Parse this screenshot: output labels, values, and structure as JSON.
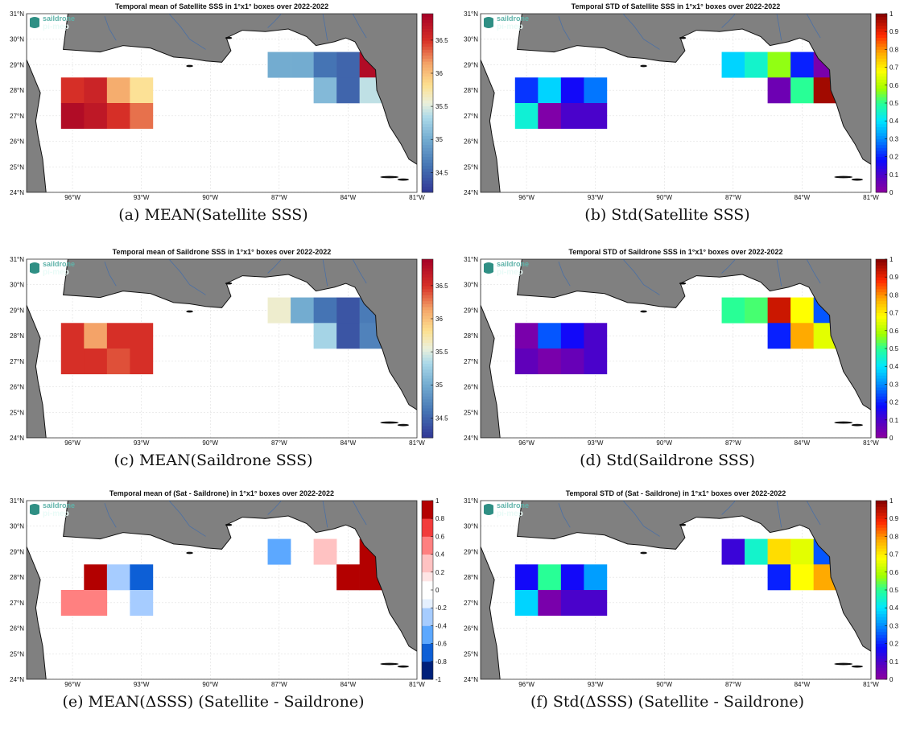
{
  "logo": {
    "line1": "saildrone",
    "line2": "pi-mep"
  },
  "colors": {
    "land": "#808080",
    "grid": "#d9d9d9",
    "axis": "#333333",
    "river": "#4a6fa5",
    "logo": "#2f8f84"
  },
  "chart_data": [
    {
      "type": "heatmap",
      "title": "Temporal mean of Satellite SSS in 1°x1° boxes over 2022-2022",
      "caption": "(a) MEAN(Satellite SSS)",
      "xlim": [
        -98,
        -81
      ],
      "ylim": [
        24,
        31
      ],
      "xticks": [
        -96,
        -93,
        -90,
        -87,
        -84,
        -81
      ],
      "xticklabels": [
        "96°W",
        "93°W",
        "90°W",
        "87°W",
        "84°W",
        "81°W"
      ],
      "yticks": [
        24,
        25,
        26,
        27,
        28,
        29,
        30,
        31
      ],
      "yticklabels": [
        "24°N",
        "25°N",
        "26°N",
        "27°N",
        "28°N",
        "29°N",
        "30°N",
        "31°N"
      ],
      "colormap": "div",
      "clim": [
        34.2,
        36.9
      ],
      "colorbar_ticks": [
        34.5,
        35,
        35.5,
        36,
        36.5
      ],
      "colorbar_ticklabels": [
        "34.5",
        "35",
        "35.5",
        "36",
        "36.5"
      ],
      "cells": [
        {
          "lon": -96,
          "lat": 28,
          "value": 36.5
        },
        {
          "lon": -95,
          "lat": 28,
          "value": 36.6
        },
        {
          "lon": -94,
          "lat": 28,
          "value": 36.1
        },
        {
          "lon": -93,
          "lat": 28,
          "value": 35.8
        },
        {
          "lon": -96,
          "lat": 27,
          "value": 36.8
        },
        {
          "lon": -95,
          "lat": 27,
          "value": 36.7
        },
        {
          "lon": -94,
          "lat": 27,
          "value": 36.5
        },
        {
          "lon": -93,
          "lat": 27,
          "value": 36.3
        },
        {
          "lon": -87,
          "lat": 29,
          "value": 35.0
        },
        {
          "lon": -86,
          "lat": 29,
          "value": 35.0
        },
        {
          "lon": -85,
          "lat": 29,
          "value": 34.6
        },
        {
          "lon": -84,
          "lat": 29,
          "value": 34.5
        },
        {
          "lon": -83,
          "lat": 29,
          "value": 36.8
        },
        {
          "lon": -85,
          "lat": 28,
          "value": 35.1
        },
        {
          "lon": -84,
          "lat": 28,
          "value": 34.5
        },
        {
          "lon": -83,
          "lat": 28,
          "value": 35.4
        }
      ]
    },
    {
      "type": "heatmap",
      "title": "Temporal STD of Satellite SSS in 1°x1° boxes over 2022-2022",
      "caption": "(b) Std(Satellite SSS)",
      "xlim": [
        -98,
        -81
      ],
      "ylim": [
        24,
        31
      ],
      "xticks": [
        -96,
        -93,
        -90,
        -87,
        -84,
        -81
      ],
      "xticklabels": [
        "96°W",
        "93°W",
        "90°W",
        "87°W",
        "84°W",
        "81°W"
      ],
      "yticks": [
        24,
        25,
        26,
        27,
        28,
        29,
        30,
        31
      ],
      "yticklabels": [
        "24°N",
        "25°N",
        "26°N",
        "27°N",
        "28°N",
        "29°N",
        "30°N",
        "31°N"
      ],
      "colormap": "jet",
      "clim": [
        0,
        1
      ],
      "colorbar_ticks": [
        0,
        0.1,
        0.2,
        0.3,
        0.4,
        0.5,
        0.6,
        0.7,
        0.8,
        0.9,
        1
      ],
      "colorbar_ticklabels": [
        "0",
        "0.1",
        "0.2",
        "0.3",
        "0.4",
        "0.5",
        "0.6",
        "0.7",
        "0.8",
        "0.9",
        "1"
      ],
      "cells": [
        {
          "lon": -96,
          "lat": 28,
          "value": 0.22
        },
        {
          "lon": -95,
          "lat": 28,
          "value": 0.38
        },
        {
          "lon": -94,
          "lat": 28,
          "value": 0.17
        },
        {
          "lon": -93,
          "lat": 28,
          "value": 0.28
        },
        {
          "lon": -96,
          "lat": 27,
          "value": 0.44
        },
        {
          "lon": -95,
          "lat": 27,
          "value": 0.02
        },
        {
          "lon": -94,
          "lat": 27,
          "value": 0.1
        },
        {
          "lon": -93,
          "lat": 27,
          "value": 0.1
        },
        {
          "lon": -87,
          "lat": 29,
          "value": 0.38
        },
        {
          "lon": -86,
          "lat": 29,
          "value": 0.45
        },
        {
          "lon": -85,
          "lat": 29,
          "value": 0.57
        },
        {
          "lon": -84,
          "lat": 29,
          "value": 0.2
        },
        {
          "lon": -83,
          "lat": 29,
          "value": 0.03
        },
        {
          "lon": -85,
          "lat": 28,
          "value": 0.05
        },
        {
          "lon": -84,
          "lat": 28,
          "value": 0.5
        },
        {
          "lon": -83,
          "lat": 28,
          "value": 0.97
        }
      ]
    },
    {
      "type": "heatmap",
      "title": "Temporal mean of Saildrone SSS in 1°x1° boxes over 2022-2022",
      "caption": "(c) MEAN(Saildrone SSS)",
      "xlim": [
        -98,
        -81
      ],
      "ylim": [
        24,
        31
      ],
      "xticks": [
        -96,
        -93,
        -90,
        -87,
        -84,
        -81
      ],
      "xticklabels": [
        "96°W",
        "93°W",
        "90°W",
        "87°W",
        "84°W",
        "81°W"
      ],
      "yticks": [
        24,
        25,
        26,
        27,
        28,
        29,
        30,
        31
      ],
      "yticklabels": [
        "24°N",
        "25°N",
        "26°N",
        "27°N",
        "28°N",
        "29°N",
        "30°N",
        "31°N"
      ],
      "colormap": "div",
      "clim": [
        34.2,
        36.9
      ],
      "colorbar_ticks": [
        34.5,
        35,
        35.5,
        36,
        36.5
      ],
      "colorbar_ticklabels": [
        "34.5",
        "35",
        "35.5",
        "36",
        "36.5"
      ],
      "cells": [
        {
          "lon": -96,
          "lat": 28,
          "value": 36.5
        },
        {
          "lon": -95,
          "lat": 28,
          "value": 36.15
        },
        {
          "lon": -94,
          "lat": 28,
          "value": 36.5
        },
        {
          "lon": -93,
          "lat": 28,
          "value": 36.5
        },
        {
          "lon": -96,
          "lat": 27,
          "value": 36.5
        },
        {
          "lon": -95,
          "lat": 27,
          "value": 36.5
        },
        {
          "lon": -94,
          "lat": 27,
          "value": 36.4
        },
        {
          "lon": -93,
          "lat": 27,
          "value": 36.5
        },
        {
          "lon": -87,
          "lat": 29,
          "value": 35.6
        },
        {
          "lon": -86,
          "lat": 29,
          "value": 35.0
        },
        {
          "lon": -85,
          "lat": 29,
          "value": 34.6
        },
        {
          "lon": -84,
          "lat": 29,
          "value": 34.4
        },
        {
          "lon": -83,
          "lat": 29,
          "value": 34.65
        },
        {
          "lon": -85,
          "lat": 28,
          "value": 35.3
        },
        {
          "lon": -84,
          "lat": 28,
          "value": 34.4
        },
        {
          "lon": -83,
          "lat": 28,
          "value": 34.7
        }
      ]
    },
    {
      "type": "heatmap",
      "title": "Temporal STD of Saildrone SSS in 1°x1° boxes over 2022-2022",
      "caption": "(d) Std(Saildrone SSS)",
      "xlim": [
        -98,
        -81
      ],
      "ylim": [
        24,
        31
      ],
      "xticks": [
        -96,
        -93,
        -90,
        -87,
        -84,
        -81
      ],
      "xticklabels": [
        "96°W",
        "93°W",
        "90°W",
        "87°W",
        "84°W",
        "81°W"
      ],
      "yticks": [
        24,
        25,
        26,
        27,
        28,
        29,
        30,
        31
      ],
      "yticklabels": [
        "24°N",
        "25°N",
        "26°N",
        "27°N",
        "28°N",
        "29°N",
        "30°N",
        "31°N"
      ],
      "colormap": "jet",
      "clim": [
        0,
        1
      ],
      "colorbar_ticks": [
        0,
        0.1,
        0.2,
        0.3,
        0.4,
        0.5,
        0.6,
        0.7,
        0.8,
        0.9,
        1
      ],
      "colorbar_ticklabels": [
        "0",
        "0.1",
        "0.2",
        "0.3",
        "0.4",
        "0.5",
        "0.6",
        "0.7",
        "0.8",
        "0.9",
        "1"
      ],
      "cells": [
        {
          "lon": -96,
          "lat": 28,
          "value": 0.03
        },
        {
          "lon": -95,
          "lat": 28,
          "value": 0.25
        },
        {
          "lon": -94,
          "lat": 28,
          "value": 0.17
        },
        {
          "lon": -93,
          "lat": 28,
          "value": 0.1
        },
        {
          "lon": -96,
          "lat": 27,
          "value": 0.07
        },
        {
          "lon": -95,
          "lat": 27,
          "value": 0.03
        },
        {
          "lon": -94,
          "lat": 27,
          "value": 0.06
        },
        {
          "lon": -93,
          "lat": 27,
          "value": 0.1
        },
        {
          "lon": -87,
          "lat": 29,
          "value": 0.5
        },
        {
          "lon": -86,
          "lat": 29,
          "value": 0.52
        },
        {
          "lon": -85,
          "lat": 29,
          "value": 0.93
        },
        {
          "lon": -84,
          "lat": 29,
          "value": 0.68
        },
        {
          "lon": -83,
          "lat": 29,
          "value": 0.25
        },
        {
          "lon": -85,
          "lat": 28,
          "value": 0.2
        },
        {
          "lon": -84,
          "lat": 28,
          "value": 0.78
        },
        {
          "lon": -83,
          "lat": 28,
          "value": 0.65
        }
      ]
    },
    {
      "type": "heatmap",
      "title": "Temporal mean of (Sat - Saildrone) in 1°x1° boxes over 2022-2022",
      "caption": "(e) MEAN(ΔSSS) (Satellite - Saildrone)",
      "xlim": [
        -98,
        -81
      ],
      "ylim": [
        24,
        31
      ],
      "xticks": [
        -96,
        -93,
        -90,
        -87,
        -84,
        -81
      ],
      "xticklabels": [
        "96°W",
        "93°W",
        "90°W",
        "87°W",
        "84°W",
        "81°W"
      ],
      "yticks": [
        24,
        25,
        26,
        27,
        28,
        29,
        30,
        31
      ],
      "yticklabels": [
        "24°N",
        "25°N",
        "26°N",
        "27°N",
        "28°N",
        "29°N",
        "30°N",
        "31°N"
      ],
      "colormap": "bwr",
      "clim": [
        -1,
        1
      ],
      "colorbar_ticks": [
        -1,
        -0.8,
        -0.6,
        -0.4,
        -0.2,
        0,
        0.2,
        0.4,
        0.6,
        0.8,
        1
      ],
      "colorbar_ticklabels": [
        "-1",
        "-0.8",
        "-0.6",
        "-0.4",
        "-0.2",
        "0",
        "0.2",
        "0.4",
        "0.6",
        "0.8",
        "1"
      ],
      "cells": [
        {
          "lon": -95,
          "lat": 28,
          "value": 0.9
        },
        {
          "lon": -94,
          "lat": 28,
          "value": -0.3
        },
        {
          "lon": -93,
          "lat": 28,
          "value": -0.7
        },
        {
          "lon": -96,
          "lat": 27,
          "value": 0.5
        },
        {
          "lon": -95,
          "lat": 27,
          "value": 0.4
        },
        {
          "lon": -93,
          "lat": 27,
          "value": -0.3
        },
        {
          "lon": -87,
          "lat": 29,
          "value": -0.5
        },
        {
          "lon": -85,
          "lat": 29,
          "value": 0.2
        },
        {
          "lon": -83,
          "lat": 29,
          "value": 1.0
        },
        {
          "lon": -84,
          "lat": 28,
          "value": 1.0
        },
        {
          "lon": -83,
          "lat": 28,
          "value": 0.85
        }
      ]
    },
    {
      "type": "heatmap",
      "title": "Temporal STD of (Sat - Saildrone) in 1°x1° boxes over 2022-2022",
      "caption": "(f) Std(ΔSSS) (Satellite - Saildrone)",
      "xlim": [
        -98,
        -81
      ],
      "ylim": [
        24,
        31
      ],
      "xticks": [
        -96,
        -93,
        -90,
        -87,
        -84,
        -81
      ],
      "xticklabels": [
        "96°W",
        "93°W",
        "90°W",
        "87°W",
        "84°W",
        "81°W"
      ],
      "yticks": [
        24,
        25,
        26,
        27,
        28,
        29,
        30,
        31
      ],
      "yticklabels": [
        "24°N",
        "25°N",
        "26°N",
        "27°N",
        "28°N",
        "29°N",
        "30°N",
        "31°N"
      ],
      "colormap": "jet",
      "clim": [
        0,
        1
      ],
      "colorbar_ticks": [
        0,
        0.1,
        0.2,
        0.3,
        0.4,
        0.5,
        0.6,
        0.7,
        0.8,
        0.9,
        1
      ],
      "colorbar_ticklabels": [
        "0",
        "0.1",
        "0.2",
        "0.3",
        "0.4",
        "0.5",
        "0.6",
        "0.7",
        "0.8",
        "0.9",
        "1"
      ],
      "cells": [
        {
          "lon": -96,
          "lat": 28,
          "value": 0.17
        },
        {
          "lon": -95,
          "lat": 28,
          "value": 0.5
        },
        {
          "lon": -94,
          "lat": 28,
          "value": 0.17
        },
        {
          "lon": -93,
          "lat": 28,
          "value": 0.32
        },
        {
          "lon": -96,
          "lat": 27,
          "value": 0.38
        },
        {
          "lon": -95,
          "lat": 27,
          "value": 0.03
        },
        {
          "lon": -94,
          "lat": 27,
          "value": 0.1
        },
        {
          "lon": -93,
          "lat": 27,
          "value": 0.1
        },
        {
          "lon": -87,
          "lat": 29,
          "value": 0.12
        },
        {
          "lon": -86,
          "lat": 29,
          "value": 0.45
        },
        {
          "lon": -85,
          "lat": 29,
          "value": 0.72
        },
        {
          "lon": -84,
          "lat": 29,
          "value": 0.65
        },
        {
          "lon": -83,
          "lat": 29,
          "value": 0.25
        },
        {
          "lon": -85,
          "lat": 28,
          "value": 0.2
        },
        {
          "lon": -84,
          "lat": 28,
          "value": 0.68
        },
        {
          "lon": -83,
          "lat": 28,
          "value": 0.78
        }
      ]
    }
  ]
}
